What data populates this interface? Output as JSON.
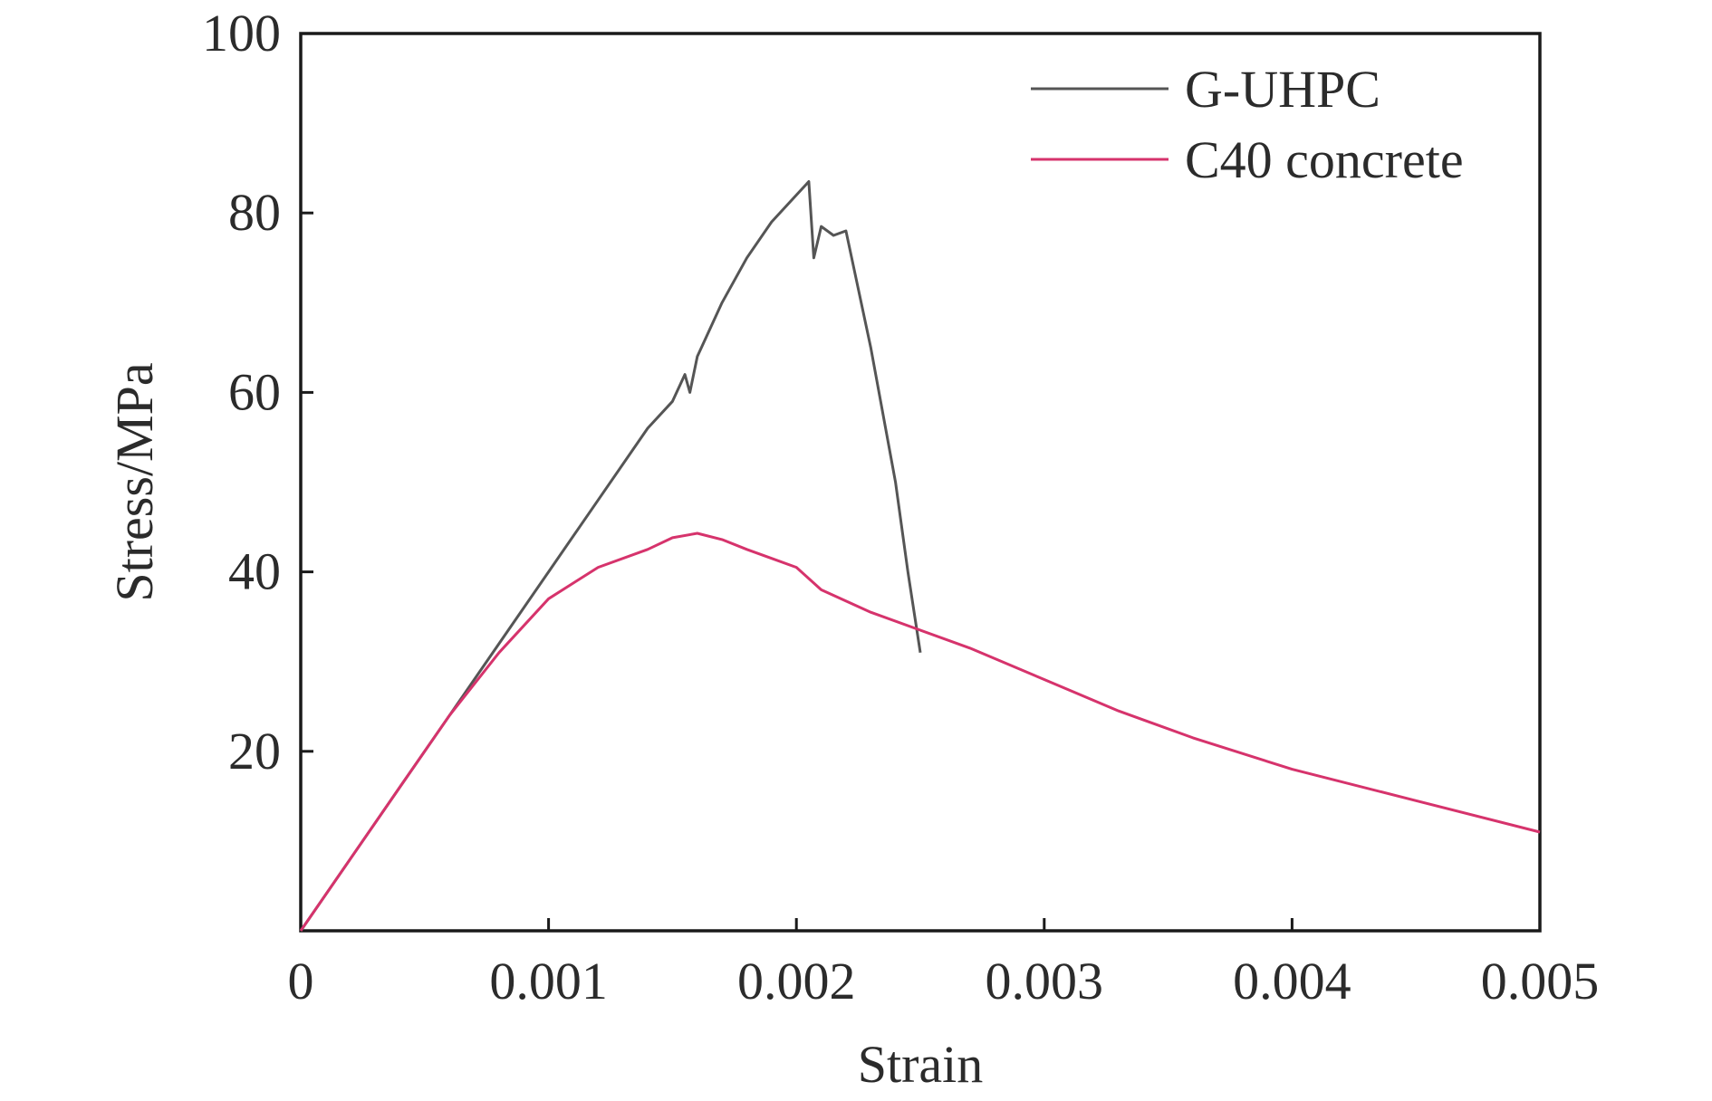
{
  "chart_data": {
    "type": "line",
    "xlabel": "Strain",
    "ylabel": "Stress/MPa",
    "xlim": [
      0,
      0.005
    ],
    "ylim": [
      0,
      100
    ],
    "x_ticks": [
      0,
      0.001,
      0.002,
      0.003,
      0.004,
      0.005
    ],
    "x_tick_labels": [
      "0",
      "0.001",
      "0.002",
      "0.003",
      "0.004",
      "0.005"
    ],
    "y_ticks": [
      20,
      40,
      60,
      80,
      100
    ],
    "y_tick_labels": [
      "20",
      "40",
      "60",
      "80",
      "100"
    ],
    "grid": false,
    "legend_position": "top-right",
    "series": [
      {
        "name": "G-UHPC",
        "color": "#555555",
        "x": [
          0,
          0.0002,
          0.0004,
          0.0006,
          0.0008,
          0.001,
          0.0012,
          0.0014,
          0.0015,
          0.00155,
          0.00157,
          0.0016,
          0.0017,
          0.0018,
          0.0019,
          0.002,
          0.00205,
          0.00207,
          0.0021,
          0.00215,
          0.0022,
          0.0023,
          0.0024,
          0.00245,
          0.0025
        ],
        "y": [
          0,
          8,
          16,
          24,
          32,
          40,
          48,
          56,
          59,
          62,
          60,
          64,
          70,
          75,
          79,
          82,
          83.5,
          75,
          78.5,
          77.5,
          78,
          65,
          50,
          40,
          31
        ]
      },
      {
        "name": "C40 concrete",
        "color": "#d6336c",
        "x": [
          0,
          0.0002,
          0.0004,
          0.0006,
          0.0008,
          0.001,
          0.0012,
          0.0014,
          0.0015,
          0.0016,
          0.0017,
          0.0018,
          0.0019,
          0.002,
          0.0021,
          0.0023,
          0.0025,
          0.0027,
          0.003,
          0.0033,
          0.0036,
          0.004,
          0.0045,
          0.005
        ],
        "y": [
          0,
          8,
          16,
          24,
          31,
          37,
          40.5,
          42.5,
          43.8,
          44.3,
          43.6,
          42.5,
          41.5,
          40.5,
          38,
          35.5,
          33.5,
          31.5,
          28,
          24.5,
          21.5,
          18,
          14.5,
          11
        ]
      }
    ]
  }
}
